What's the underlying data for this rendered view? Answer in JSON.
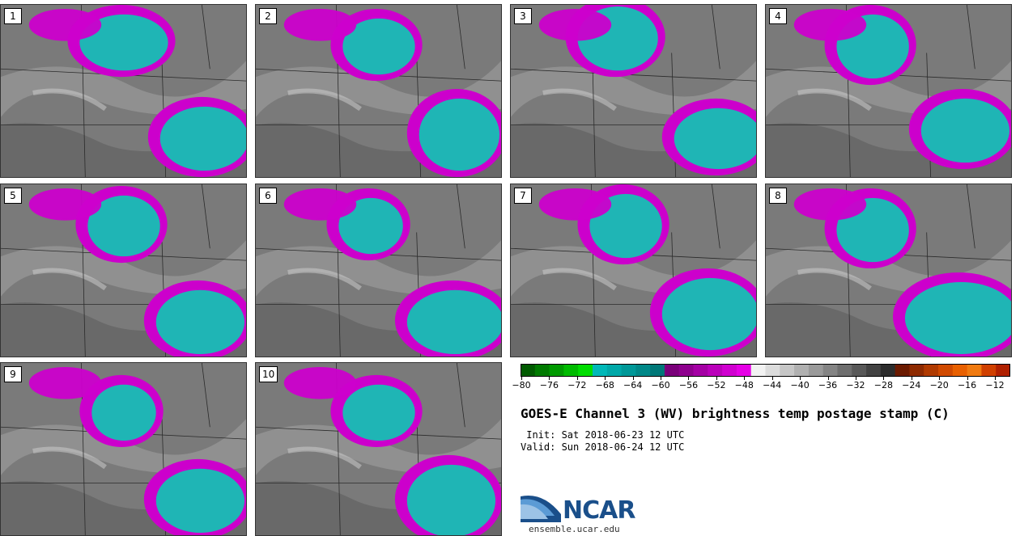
{
  "panels": [
    {
      "label": "1"
    },
    {
      "label": "2"
    },
    {
      "label": "3"
    },
    {
      "label": "4"
    },
    {
      "label": "5"
    },
    {
      "label": "6"
    },
    {
      "label": "7"
    },
    {
      "label": "8"
    },
    {
      "label": "9"
    },
    {
      "label": "10"
    }
  ],
  "colorbar": {
    "ticks": [
      "−80",
      "−76",
      "−72",
      "−68",
      "−64",
      "−60",
      "−56",
      "−52",
      "−48",
      "−44",
      "−40",
      "−36",
      "−32",
      "−28",
      "−24",
      "−20",
      "−16",
      "−12"
    ],
    "bins": [
      "#005a00",
      "#007a00",
      "#009a00",
      "#00bb00",
      "#00dd00",
      "#00b8b8",
      "#00a8a8",
      "#009898",
      "#008888",
      "#007878",
      "#7a007a",
      "#8e008e",
      "#a400a4",
      "#ba00ba",
      "#d000d0",
      "#e600e6",
      "#f2f2f2",
      "#dcdcdc",
      "#c6c6c6",
      "#b0b0b0",
      "#9a9a9a",
      "#848484",
      "#6e6e6e",
      "#585858",
      "#424242",
      "#2c2c2c",
      "#6b1a00",
      "#8e2a00",
      "#b03a00",
      "#d04a00",
      "#e86000",
      "#f07a10",
      "#d04000",
      "#b02000"
    ]
  },
  "title": "GOES-E Channel 3 (WV) brightness temp postage stamp (C)",
  "init": " Init: Sat 2018-06-23 12 UTC",
  "valid": "Valid: Sun 2018-06-24 12 UTC",
  "logo": {
    "text": "NCAR",
    "url": "ensemble.ucar.edu"
  },
  "colors": {
    "magenta": "#cc00cc",
    "cyan": "#1fb5b5",
    "gray": "#7a7a7a"
  }
}
